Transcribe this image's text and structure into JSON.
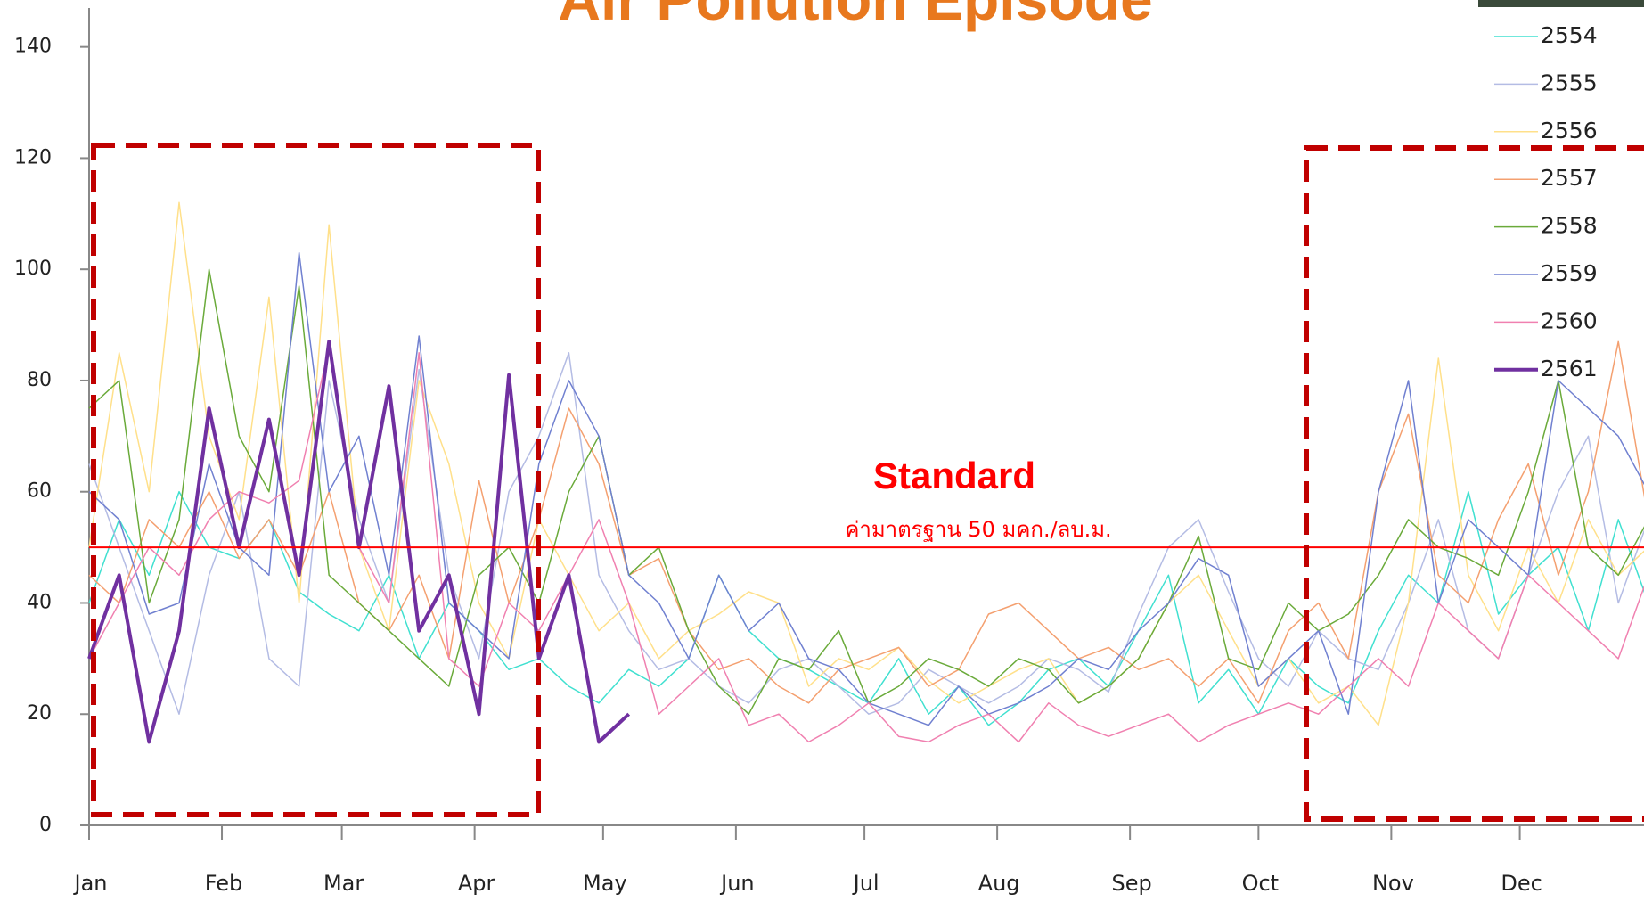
{
  "chart_data": {
    "type": "line",
    "title": "Air Pollution Episode",
    "annotations": [
      "Standard",
      "ค่ามาตรฐาน 50 มคก./ลบ.ม."
    ],
    "standard_line": 50,
    "standard_color": "#ff0000",
    "xlim": [
      1,
      364
    ],
    "xticks": [
      {
        "value": 1,
        "label": "Jan"
      },
      {
        "value": 32,
        "label": "Feb"
      },
      {
        "value": 60,
        "label": "Mar"
      },
      {
        "value": 91,
        "label": "Apr"
      },
      {
        "value": 121,
        "label": "May"
      },
      {
        "value": 152,
        "label": "Jun"
      },
      {
        "value": 182,
        "label": "Jul"
      },
      {
        "value": 213,
        "label": "Aug"
      },
      {
        "value": 244,
        "label": "Sep"
      },
      {
        "value": 274,
        "label": "Oct"
      },
      {
        "value": 305,
        "label": "Nov"
      },
      {
        "value": 335,
        "label": "Dec"
      }
    ],
    "ylim": [
      0,
      147
    ],
    "yticks": [
      0,
      20,
      40,
      60,
      80,
      100,
      120,
      140
    ],
    "legend": "top-right",
    "x": [
      1,
      8,
      15,
      22,
      29,
      36,
      43,
      50,
      57,
      64,
      71,
      78,
      85,
      92,
      99,
      106,
      113,
      120,
      127,
      134,
      141,
      148,
      155,
      162,
      169,
      176,
      183,
      190,
      197,
      204,
      211,
      218,
      225,
      232,
      239,
      246,
      253,
      260,
      267,
      274,
      281,
      288,
      295,
      302,
      309,
      316,
      323,
      330,
      337,
      344,
      351,
      358,
      365
    ],
    "series": [
      {
        "name": "2554",
        "color": "#40e0d0",
        "linewidth": 1.5,
        "values": [
          40,
          55,
          45,
          60,
          50,
          48,
          55,
          42,
          38,
          35,
          45,
          30,
          40,
          35,
          28,
          30,
          25,
          22,
          28,
          25,
          30,
          45,
          35,
          30,
          28,
          25,
          22,
          30,
          20,
          25,
          18,
          22,
          28,
          30,
          25,
          35,
          45,
          22,
          28,
          20,
          30,
          25,
          22,
          35,
          45,
          40,
          60,
          38,
          45,
          50,
          35,
          55,
          40
        ]
      },
      {
        "name": "2555",
        "color": "#b4bce4",
        "linewidth": 1.5,
        "values": [
          65,
          50,
          35,
          20,
          45,
          60,
          30,
          25,
          80,
          55,
          40,
          82,
          45,
          30,
          60,
          70,
          85,
          45,
          35,
          28,
          30,
          25,
          22,
          28,
          30,
          25,
          20,
          22,
          28,
          25,
          22,
          25,
          30,
          28,
          24,
          38,
          50,
          55,
          42,
          30,
          25,
          35,
          30,
          28,
          40,
          55,
          35,
          30,
          45,
          60,
          70,
          40,
          55
        ]
      },
      {
        "name": "2556",
        "color": "#ffe08a",
        "linewidth": 1.5,
        "values": [
          50,
          85,
          60,
          112,
          70,
          55,
          95,
          40,
          108,
          50,
          35,
          80,
          65,
          40,
          30,
          55,
          45,
          35,
          40,
          30,
          35,
          38,
          42,
          40,
          25,
          30,
          28,
          32,
          26,
          22,
          25,
          28,
          30,
          22,
          25,
          30,
          40,
          45,
          35,
          25,
          30,
          22,
          25,
          18,
          40,
          84,
          45,
          35,
          50,
          40,
          55,
          45,
          50
        ]
      },
      {
        "name": "2557",
        "color": "#f4a070",
        "linewidth": 1.5,
        "values": [
          45,
          40,
          55,
          50,
          60,
          48,
          55,
          45,
          60,
          40,
          35,
          45,
          30,
          62,
          40,
          55,
          75,
          65,
          45,
          48,
          35,
          28,
          30,
          25,
          22,
          28,
          30,
          32,
          25,
          28,
          38,
          40,
          35,
          30,
          32,
          28,
          30,
          25,
          30,
          22,
          35,
          40,
          30,
          60,
          74,
          45,
          40,
          55,
          65,
          45,
          60,
          87,
          55
        ]
      },
      {
        "name": "2558",
        "color": "#6aaa3a",
        "linewidth": 1.5,
        "values": [
          75,
          80,
          40,
          55,
          100,
          70,
          60,
          97,
          45,
          40,
          35,
          30,
          25,
          45,
          50,
          40,
          60,
          70,
          45,
          50,
          35,
          25,
          20,
          30,
          28,
          35,
          22,
          25,
          30,
          28,
          25,
          30,
          28,
          22,
          25,
          30,
          40,
          52,
          30,
          28,
          40,
          35,
          38,
          45,
          55,
          50,
          48,
          45,
          60,
          80,
          50,
          45,
          55
        ]
      },
      {
        "name": "2559",
        "color": "#7080d0",
        "linewidth": 1.5,
        "values": [
          60,
          55,
          38,
          40,
          65,
          50,
          45,
          103,
          60,
          70,
          45,
          88,
          40,
          35,
          30,
          65,
          80,
          70,
          45,
          40,
          30,
          45,
          35,
          40,
          30,
          28,
          22,
          20,
          18,
          25,
          20,
          22,
          25,
          30,
          28,
          35,
          40,
          48,
          45,
          25,
          30,
          35,
          20,
          60,
          80,
          40,
          55,
          50,
          45,
          80,
          75,
          70,
          60
        ]
      },
      {
        "name": "2560",
        "color": "#f080b0",
        "linewidth": 1.5,
        "values": [
          30,
          40,
          50,
          45,
          55,
          60,
          58,
          62,
          86,
          50,
          40,
          85,
          30,
          25,
          40,
          35,
          45,
          55,
          40,
          20,
          25,
          30,
          18,
          20,
          15,
          18,
          22,
          16,
          15,
          18,
          20,
          15,
          22,
          18,
          16,
          18,
          20,
          15,
          18,
          20,
          22,
          20,
          25,
          30,
          25,
          40,
          35,
          30,
          45,
          40,
          35,
          30,
          45
        ]
      },
      {
        "name": "2561",
        "color": "#7030a0",
        "linewidth": 4,
        "values": [
          30,
          45,
          15,
          35,
          75,
          50,
          73,
          45,
          87,
          50,
          79,
          35,
          45,
          20,
          81,
          30,
          45,
          15,
          20,
          null,
          null,
          null,
          null,
          null,
          null,
          null,
          null,
          null,
          null,
          null,
          null,
          null,
          null,
          null,
          null,
          null,
          null,
          null,
          null,
          null,
          null,
          null,
          null,
          null,
          null,
          null,
          null,
          null,
          null,
          null,
          null,
          null,
          null
        ]
      }
    ]
  }
}
